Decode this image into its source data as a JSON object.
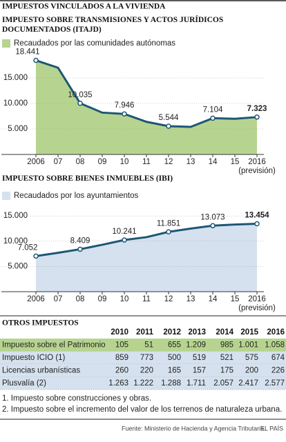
{
  "header": {
    "title": "IMPUESTOS VINCULADOS A LA VIVIENDA"
  },
  "chart_data": [
    {
      "type": "area",
      "title": "IMPUESTO SOBRE TRANSMISIONES Y ACTOS JURÍDICOS DOCUMENTADOS (ITAJD)",
      "legend": "Recaudados por las comunidades autónomas",
      "categories": [
        "2006",
        "07",
        "08",
        "09",
        "10",
        "11",
        "12",
        "13",
        "14",
        "15",
        "2016"
      ],
      "values": [
        18441,
        17000,
        10035,
        8200,
        7946,
        6400,
        5544,
        5400,
        7104,
        7000,
        7323
      ],
      "value_labels": [
        "18.441",
        null,
        "10.035",
        null,
        "7.946",
        null,
        "5.544",
        null,
        "7.104",
        null,
        "7.323"
      ],
      "annotation": "(previsión)",
      "ylim": [
        0,
        20000
      ],
      "yticks": [
        {
          "value": 5000,
          "label": "5.000"
        },
        {
          "value": 10000,
          "label": "10.000"
        },
        {
          "value": 15000,
          "label": "15.000"
        }
      ],
      "grid": true,
      "color": "#b6d48f",
      "line_color": "#1d5675"
    },
    {
      "type": "area",
      "title": "IMPUESTO SOBRE BIENES INMUEBLES (IBI)",
      "legend": "Recaudados por los ayuntamientos",
      "categories": [
        "2006",
        "07",
        "08",
        "09",
        "10",
        "11",
        "12",
        "13",
        "14",
        "15",
        "2016"
      ],
      "values": [
        7052,
        7700,
        8409,
        9300,
        10241,
        10800,
        11851,
        12500,
        13073,
        13300,
        13454
      ],
      "value_labels": [
        "7.052",
        null,
        "8.409",
        null,
        "10.241",
        null,
        "11.851",
        null,
        "13.073",
        null,
        "13.454"
      ],
      "annotation": "(previsión)",
      "ylim": [
        0,
        17000
      ],
      "yticks": [
        {
          "value": 5000,
          "label": "5.000"
        },
        {
          "value": 10000,
          "label": "10.000"
        },
        {
          "value": 15000,
          "label": "15.000"
        }
      ],
      "grid": true,
      "color": "#d5e1ee",
      "line_color": "#1d5675"
    }
  ],
  "table": {
    "title": "OTROS IMPUESTOS",
    "columns": [
      "2010",
      "2011",
      "2012",
      "2013",
      "2014",
      "2015",
      "2016"
    ],
    "rows": [
      {
        "label": "Impuesto sobre el Patrimonio",
        "values": [
          "105",
          "51",
          "655",
          "1.209",
          "985",
          "1.001",
          "1.058"
        ],
        "color": "#b6d48f"
      },
      {
        "label": "Impuesto ICIO (1)",
        "values": [
          "859",
          "773",
          "500",
          "519",
          "521",
          "575",
          "674"
        ],
        "color": "#d5e1ee"
      },
      {
        "label": "Licencias urbanísticas",
        "values": [
          "260",
          "220",
          "165",
          "157",
          "175",
          "200",
          "226"
        ],
        "color": "#d5e1ee"
      },
      {
        "label": "Plusvalía (2)",
        "values": [
          "1.263",
          "1.222",
          "1.288",
          "1.711",
          "2.057",
          "2.417",
          "2.577"
        ],
        "color": "#d5e1ee"
      }
    ]
  },
  "notes": [
    "1. Impuesto sobre construcciones y obras.",
    "2. Impuesto sobre el incremento del valor de los terrenos de naturaleza urbana."
  ],
  "source": "Fuente: Ministerio de Hacienda y Agencia Tributaria.",
  "brand": "EL PAÍS"
}
